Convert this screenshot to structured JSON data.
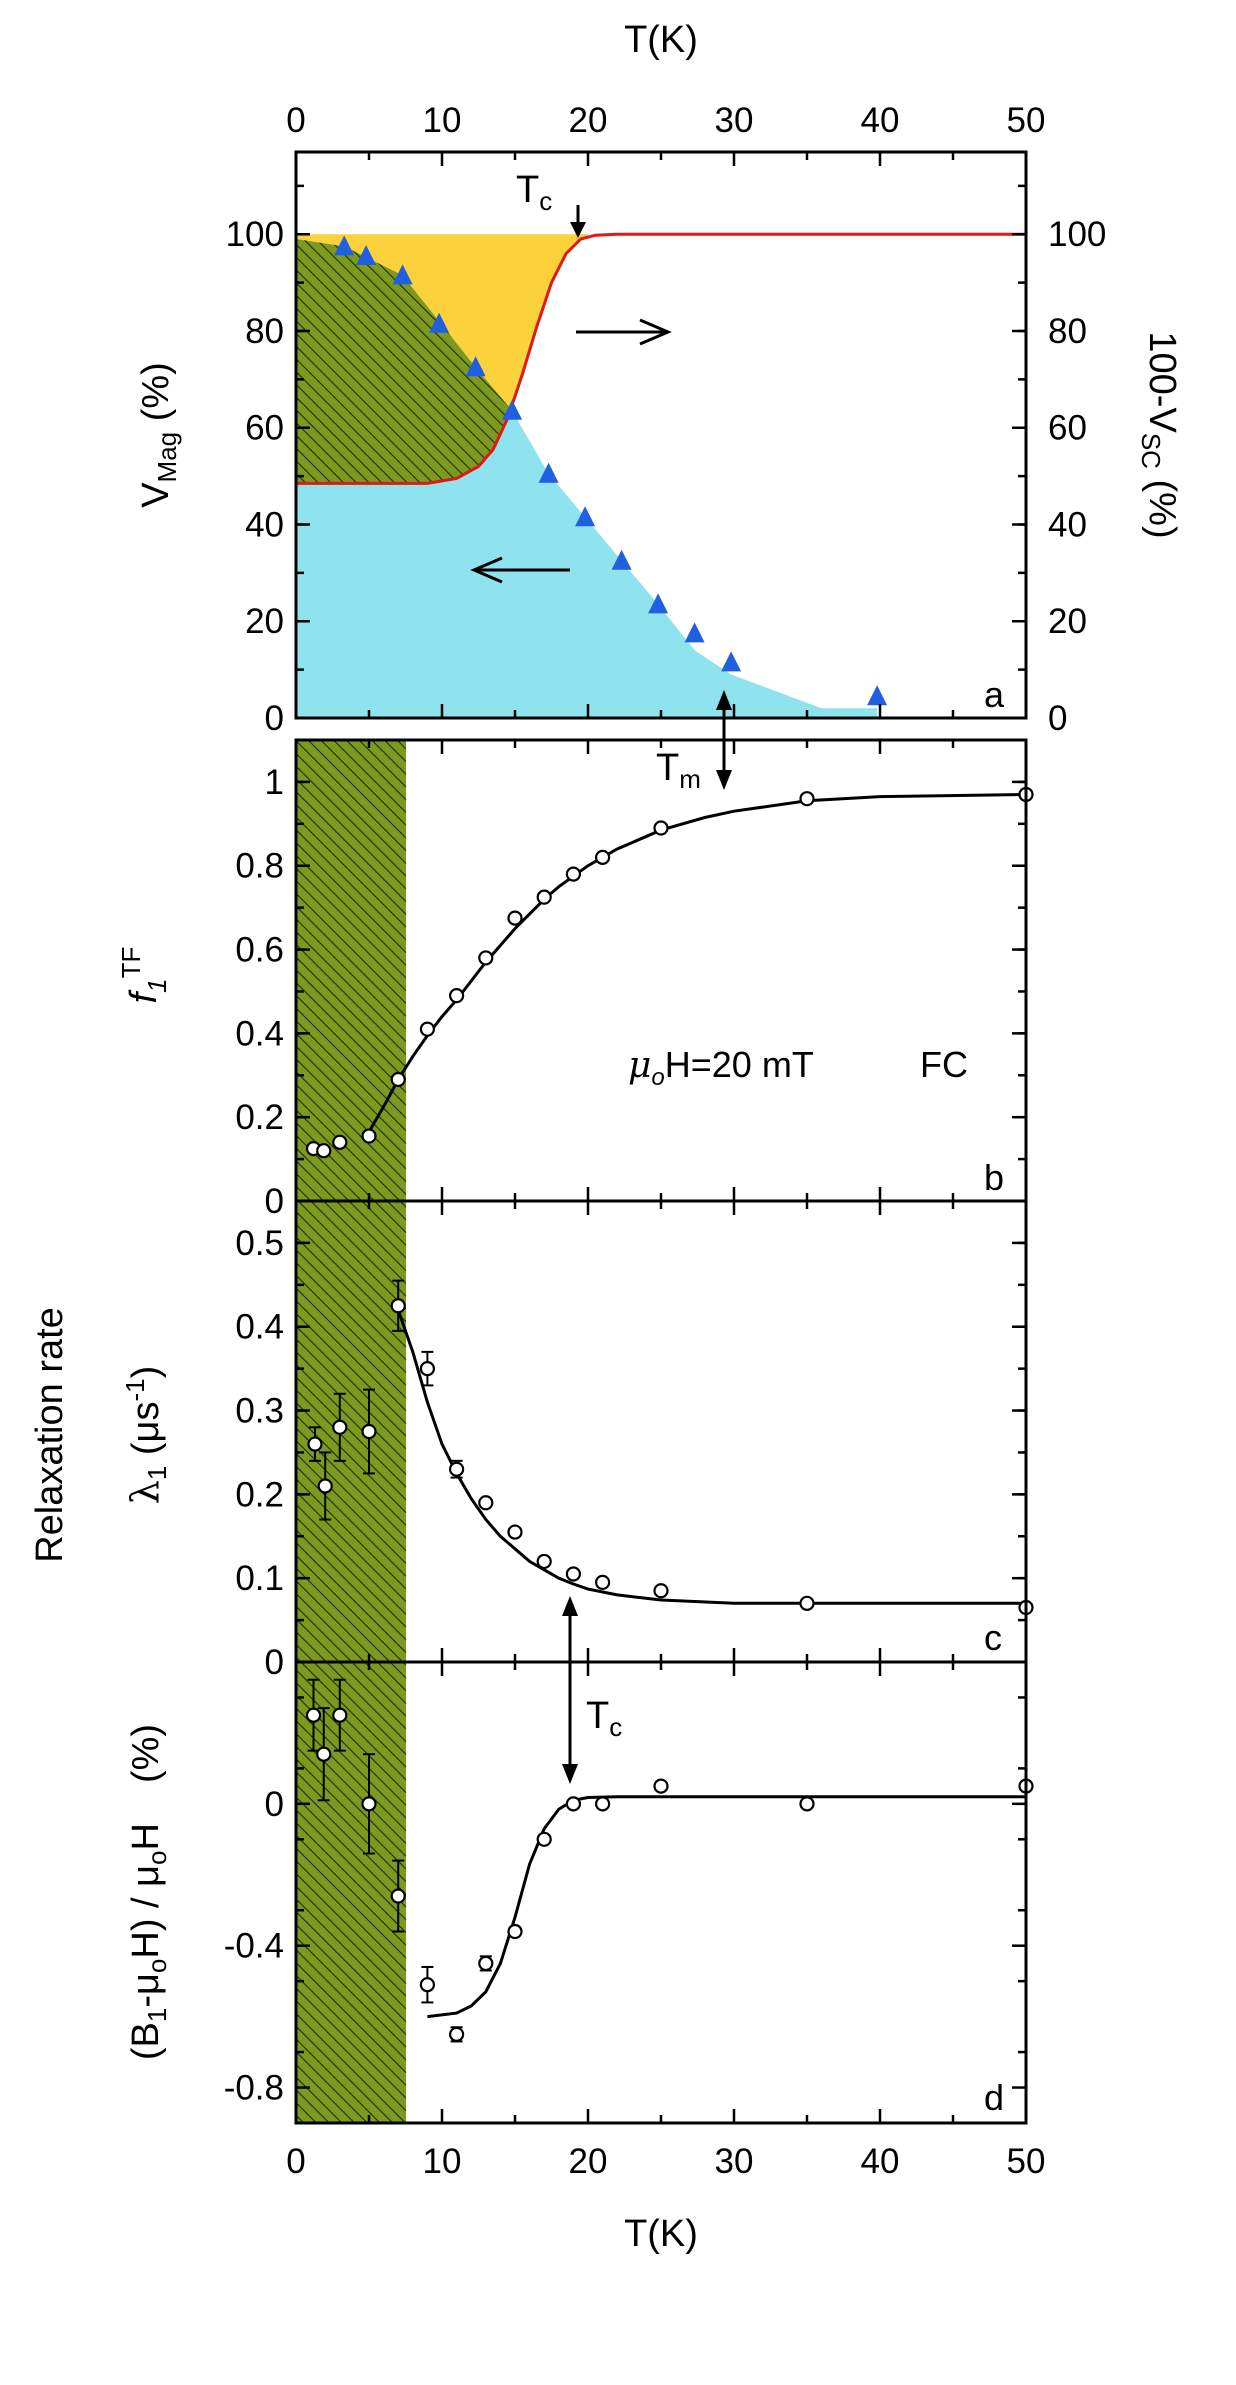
{
  "chart_data": [
    {
      "panel": "a",
      "type": "area",
      "xlabel": "T(K)",
      "ylabel": "V_Mag (%)",
      "ylabel_right": "100-V_SC (%)",
      "xlim": [
        0,
        50
      ],
      "ylim": [
        0,
        117
      ],
      "x_ticks": [
        "0",
        "10",
        "20",
        "30",
        "40",
        "50"
      ],
      "y_ticks": [
        "0",
        "20",
        "40",
        "60",
        "80",
        "100"
      ],
      "y_ticks_right": [
        "0",
        "20",
        "40",
        "60",
        "80",
        "100"
      ],
      "annotations": {
        "tc": "T",
        "tc_sub": "c",
        "letter": "a"
      },
      "series": [
        {
          "name": "V_Mag",
          "marker": "triangle",
          "color": "#1f5fe0",
          "x": [
            3.3,
            4.8,
            7.3,
            9.8,
            12.3,
            14.8,
            17.3,
            19.8,
            22.3,
            24.8,
            27.3,
            29.8,
            39.8
          ],
          "y": [
            97.5,
            95.5,
            91.5,
            81.5,
            72.5,
            63.5,
            50.5,
            41.5,
            32.5,
            23.5,
            17.5,
            11.5,
            4.5
          ]
        },
        {
          "name": "100-V_SC",
          "type": "line",
          "color": "#e01818",
          "x": [
            0,
            5,
            9,
            11,
            12.5,
            13.5,
            14.5,
            15.5,
            16.5,
            17.5,
            18.5,
            19.5,
            20.5,
            22,
            25,
            50
          ],
          "y": [
            48.5,
            48.5,
            48.5,
            49.5,
            52,
            55.5,
            62,
            71,
            81,
            90,
            96,
            99,
            99.8,
            100,
            100,
            100
          ]
        },
        {
          "name": "magnetic volume (shaded cyan)",
          "type": "area",
          "color": "#8fe3ee",
          "x": [
            0,
            3.3,
            7.3,
            12.3,
            14.8,
            17.3,
            19.8,
            22.3,
            24.8,
            27.3,
            29.8,
            36,
            39.8
          ],
          "y": [
            99,
            97.5,
            91.5,
            72.5,
            63.5,
            50.5,
            41.5,
            32.5,
            23.5,
            14,
            9,
            2,
            2
          ]
        }
      ],
      "regions": {
        "yellow": "#fbd13d",
        "olive_hatched": "#7f9a22",
        "cyan": "#8fe3ee"
      }
    },
    {
      "panel": "b",
      "type": "line",
      "ylabel": "f",
      "ylabel_sub": "1",
      "ylabel_sup": "TF",
      "xlim": [
        0,
        50
      ],
      "ylim": [
        0,
        1.1
      ],
      "y_ticks": [
        "0",
        "0.2",
        "0.4",
        "0.6",
        "0.8",
        "1"
      ],
      "annotations": {
        "field_mu": "μ",
        "field_sub": "o",
        "field_text": "H=20 mT",
        "fc": "FC",
        "tm": "T",
        "tm_sub": "m",
        "letter": "b"
      },
      "points": {
        "x": [
          1.2,
          1.9,
          3.0,
          5.0,
          7.0,
          9.0,
          11.0,
          13.0,
          15.0,
          17.0,
          19.0,
          21.0,
          25.0,
          35.0,
          50.0
        ],
        "y": [
          0.125,
          0.12,
          0.14,
          0.155,
          0.29,
          0.41,
          0.49,
          0.58,
          0.675,
          0.725,
          0.78,
          0.82,
          0.89,
          0.96,
          0.97
        ]
      },
      "fit": {
        "x": [
          5,
          6,
          7,
          8,
          9,
          10,
          11,
          12,
          13,
          14,
          15,
          16,
          17,
          18,
          19,
          20,
          21,
          22,
          23,
          25,
          28,
          30,
          35,
          40,
          50
        ],
        "y": [
          0.165,
          0.225,
          0.29,
          0.345,
          0.395,
          0.44,
          0.48,
          0.525,
          0.57,
          0.61,
          0.65,
          0.685,
          0.72,
          0.75,
          0.775,
          0.8,
          0.82,
          0.84,
          0.855,
          0.885,
          0.915,
          0.93,
          0.955,
          0.965,
          0.97
        ]
      }
    },
    {
      "panel": "c",
      "type": "scatter",
      "side_label": "Relaxation rate",
      "ylabel": "λ",
      "ylabel_sub": "1",
      "ylabel_unit": "(μs",
      "ylabel_unit_sup": "-1",
      "ylabel_unit_close": ")",
      "xlim": [
        0,
        50
      ],
      "ylim": [
        0,
        0.55
      ],
      "y_ticks": [
        "0",
        "0.1",
        "0.2",
        "0.3",
        "0.4",
        "0.5"
      ],
      "annotations": {
        "letter": "c"
      },
      "points": {
        "x": [
          1.3,
          2.0,
          3.0,
          5.0,
          7.0,
          9.0,
          11.0,
          13.0,
          15.0,
          17.0,
          19.0,
          21.0,
          25.0,
          35.0,
          50.0
        ],
        "y": [
          0.26,
          0.21,
          0.28,
          0.275,
          0.425,
          0.35,
          0.23,
          0.19,
          0.155,
          0.12,
          0.105,
          0.095,
          0.085,
          0.07,
          0.065
        ],
        "err": [
          0.02,
          0.04,
          0.04,
          0.05,
          0.03,
          0.02,
          0.01,
          0.005,
          0.005,
          0.005,
          0.005,
          0.005,
          0.005,
          0.005,
          0.005
        ]
      },
      "fit": {
        "x": [
          7,
          8,
          9,
          10,
          11,
          12,
          13,
          14,
          15,
          16,
          17,
          18,
          19,
          20,
          22,
          25,
          30,
          35,
          50
        ],
        "y": [
          0.42,
          0.37,
          0.31,
          0.26,
          0.225,
          0.195,
          0.17,
          0.15,
          0.135,
          0.12,
          0.11,
          0.1,
          0.093,
          0.087,
          0.08,
          0.074,
          0.07,
          0.07,
          0.07
        ]
      }
    },
    {
      "panel": "d",
      "type": "scatter",
      "ylabel": "(B1-μoH) / μoH  (%)",
      "ylabel_parts": {
        "l1": "(B",
        "sub1": "1",
        "l2": "-μ",
        "sub2": "o",
        "l3": "H) / μ",
        "sub3": "o",
        "l4": "H",
        "pct": "(%)"
      },
      "xlabel": "T(K)",
      "xlim": [
        0,
        50
      ],
      "ylim": [
        -0.9,
        0.4
      ],
      "x_ticks": [
        "0",
        "10",
        "20",
        "30",
        "40",
        "50"
      ],
      "y_ticks": [
        "-0.8",
        "-0.4",
        "0"
      ],
      "annotations": {
        "tc": "T",
        "tc_sub": "c",
        "letter": "d"
      },
      "points": {
        "x": [
          1.2,
          1.9,
          3.0,
          5.0,
          7.0,
          9.0,
          11.0,
          13.0,
          15.0,
          17.0,
          19.0,
          21.0,
          25.0,
          35.0,
          50.0
        ],
        "y": [
          0.25,
          0.14,
          0.25,
          0.0,
          -0.26,
          -0.51,
          -0.65,
          -0.45,
          -0.36,
          -0.1,
          0.0,
          0.0,
          0.05,
          0.0,
          0.05
        ],
        "err": [
          0.1,
          0.13,
          0.1,
          0.14,
          0.1,
          0.05,
          0.02,
          0.02,
          0.01,
          0.01,
          0.01,
          0.01,
          0.01,
          0.01,
          0.01
        ]
      },
      "fit": {
        "x": [
          9,
          11,
          12,
          13,
          14,
          15,
          16,
          17,
          18,
          19,
          20,
          22,
          25,
          35,
          50
        ],
        "y": [
          -0.6,
          -0.59,
          -0.57,
          -0.53,
          -0.45,
          -0.32,
          -0.17,
          -0.07,
          -0.015,
          0.01,
          0.018,
          0.02,
          0.02,
          0.02,
          0.02
        ]
      }
    }
  ]
}
